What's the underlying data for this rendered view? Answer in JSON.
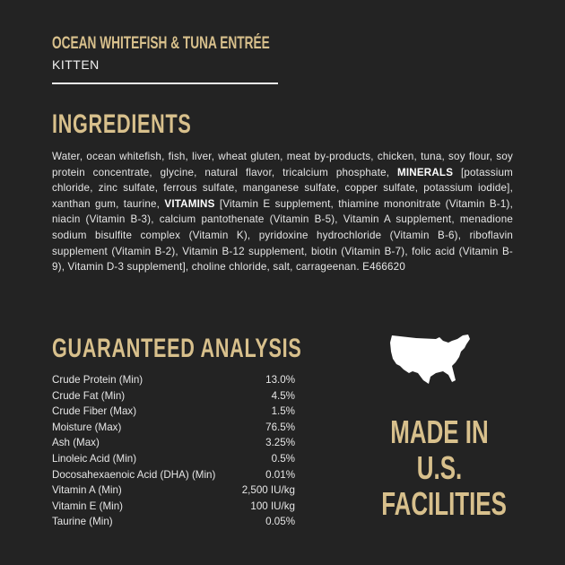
{
  "product": {
    "title": "OCEAN WHITEFISH & TUNA ENTRÉE",
    "subtitle": "KITTEN"
  },
  "ingredients": {
    "heading": "INGREDIENTS",
    "part1": "Water, ocean whitefish, fish, liver, wheat gluten, meat by-products, chicken, tuna, soy flour, soy protein concentrate, glycine, natural flavor, tricalcium phosphate,",
    "minerals_label": "MINERALS",
    "part2": "[potassium chloride, zinc sulfate, ferrous sulfate, manganese sulfate, copper sulfate, potassium iodide], xanthan gum, taurine,",
    "vitamins_label": "VITAMINS",
    "part3": "[Vitamin E supplement, thiamine mononitrate (Vitamin B-1), niacin (Vitamin B-3), calcium pantothenate (Vitamin B-5), Vitamin A supplement, menadione sodium bisulfite complex (Vitamin K), pyridoxine hydrochloride (Vitamin B-6), riboflavin supplement (Vitamin B-2), Vitamin B-12 supplement, biotin (Vitamin B-7), folic acid (Vitamin B-9), Vitamin D-3 supplement], choline chloride, salt, carrageenan. E466620"
  },
  "analysis": {
    "heading": "GUARANTEED ANALYSIS",
    "rows": [
      {
        "label": "Crude Protein (Min)",
        "value": "13.0%"
      },
      {
        "label": "Crude Fat (Min)",
        "value": "4.5%"
      },
      {
        "label": "Crude Fiber (Max)",
        "value": "1.5%"
      },
      {
        "label": "Moisture (Max)",
        "value": "76.5%"
      },
      {
        "label": "Ash (Max)",
        "value": "3.25%"
      },
      {
        "label": "Linoleic Acid (Min)",
        "value": "0.5%"
      },
      {
        "label": "Docosahexaenoic Acid (DHA) (Min)",
        "value": "0.01%"
      },
      {
        "label": "Vitamin A (Min)",
        "value": "2,500 IU/kg"
      },
      {
        "label": "Vitamin E (Min)",
        "value": "100 IU/kg"
      },
      {
        "label": "Taurine (Min)",
        "value": "0.05%"
      }
    ]
  },
  "made_in": {
    "icon": "usa-map-icon",
    "lines": [
      "MADE IN",
      "U.S.",
      "FACILITIES"
    ]
  },
  "colors": {
    "background": "#232323",
    "gold": "#d8c08c",
    "text": "#e6e6e6"
  }
}
